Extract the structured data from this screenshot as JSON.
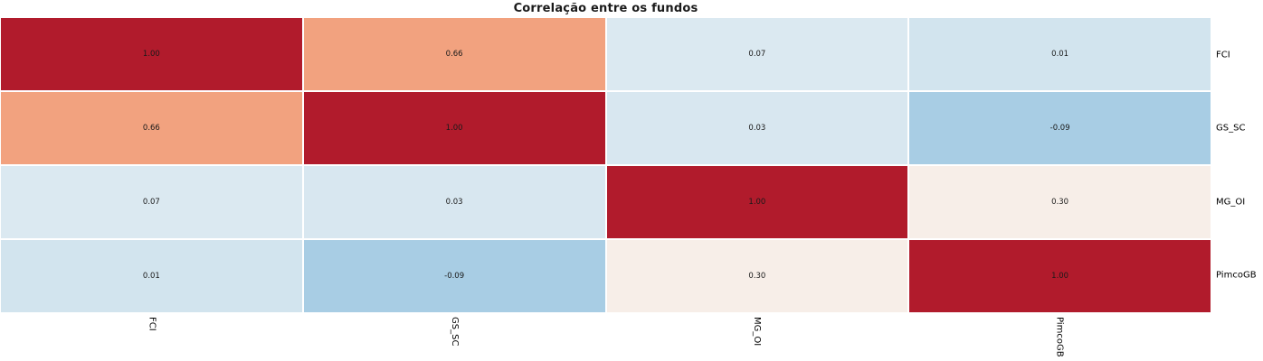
{
  "title": "Correlação entre os fundos",
  "chart_data": {
    "type": "heatmap",
    "title": "Correlação entre os fundos",
    "x_labels": [
      "FCI",
      "GS_SC",
      "MG_OI",
      "PimcoGB"
    ],
    "y_labels": [
      "FCI",
      "GS_SC",
      "MG_OI",
      "PimcoGB"
    ],
    "y_label_side": "right",
    "x_label_rotation": 90,
    "values": [
      [
        1.0,
        0.66,
        0.07,
        0.01
      ],
      [
        0.66,
        1.0,
        0.03,
        -0.09
      ],
      [
        0.07,
        0.03,
        1.0,
        0.3
      ],
      [
        0.01,
        -0.09,
        0.3,
        1.0
      ]
    ],
    "cell_text": [
      [
        "1.00",
        "0.66",
        "0.07",
        "0.01"
      ],
      [
        "0.66",
        "1.00",
        "0.03",
        "-0.09"
      ],
      [
        "0.07",
        "0.03",
        "1.00",
        "0.30"
      ],
      [
        "0.01",
        "-0.09",
        "0.30",
        "1.00"
      ]
    ],
    "cell_colors": [
      [
        "#b11b2c",
        "#f2a27f",
        "#dbe9f1",
        "#d2e4ee"
      ],
      [
        "#f2a27f",
        "#b11b2c",
        "#d8e7f0",
        "#a8cde4"
      ],
      [
        "#dbe9f1",
        "#d8e7f0",
        "#b11b2c",
        "#f7eee8"
      ],
      [
        "#d2e4ee",
        "#a8cde4",
        "#f7eee8",
        "#b11b2c"
      ]
    ],
    "colormap": "RdBu_r",
    "annotation_color": "#1a1a1a",
    "grid_line_color": "#ffffff",
    "legend": "none",
    "colorbar": "none"
  }
}
